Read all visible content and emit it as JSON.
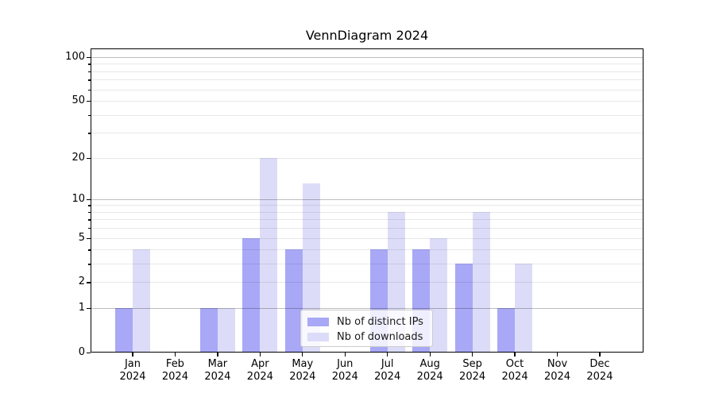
{
  "chart_data": {
    "type": "bar",
    "title": "VennDiagram 2024",
    "categories": [
      "Jan",
      "Feb",
      "Mar",
      "Apr",
      "May",
      "Jun",
      "Jul",
      "Aug",
      "Sep",
      "Oct",
      "Nov",
      "Dec"
    ],
    "x_ticks": [
      {
        "month": "Jan",
        "year": "2024"
      },
      {
        "month": "Feb",
        "year": "2024"
      },
      {
        "month": "Mar",
        "year": "2024"
      },
      {
        "month": "Apr",
        "year": "2024"
      },
      {
        "month": "May",
        "year": "2024"
      },
      {
        "month": "Jun",
        "year": "2024"
      },
      {
        "month": "Jul",
        "year": "2024"
      },
      {
        "month": "Aug",
        "year": "2024"
      },
      {
        "month": "Sep",
        "year": "2024"
      },
      {
        "month": "Oct",
        "year": "2024"
      },
      {
        "month": "Nov",
        "year": "2024"
      },
      {
        "month": "Dec",
        "year": "2024"
      }
    ],
    "series": [
      {
        "name": "Nb of distinct IPs",
        "color": "#a8a8f7",
        "values": [
          1,
          0,
          1,
          5,
          4,
          0,
          4,
          4,
          3,
          1,
          0,
          0
        ]
      },
      {
        "name": "Nb of downloads",
        "color": "#dcdcf9",
        "values": [
          4,
          0,
          1,
          20,
          13,
          0,
          8,
          5,
          8,
          3,
          0,
          0
        ]
      }
    ],
    "y_axis": {
      "scale": "log1p",
      "major_ticks": [
        0,
        1,
        2,
        5,
        10,
        20,
        50,
        100
      ],
      "minor_ticks": [
        3,
        4,
        6,
        7,
        8,
        9,
        30,
        40,
        60,
        70,
        80,
        90
      ],
      "major_gridlines": [
        1,
        10,
        100
      ],
      "max": 101
    },
    "grid": true,
    "legend_position": "lower center",
    "colors": {
      "grid_minor": "rgba(0,0,0,0.09)",
      "grid_major": "rgba(0,0,0,0.26)",
      "axis": "#000000",
      "background": "#ffffff"
    }
  }
}
